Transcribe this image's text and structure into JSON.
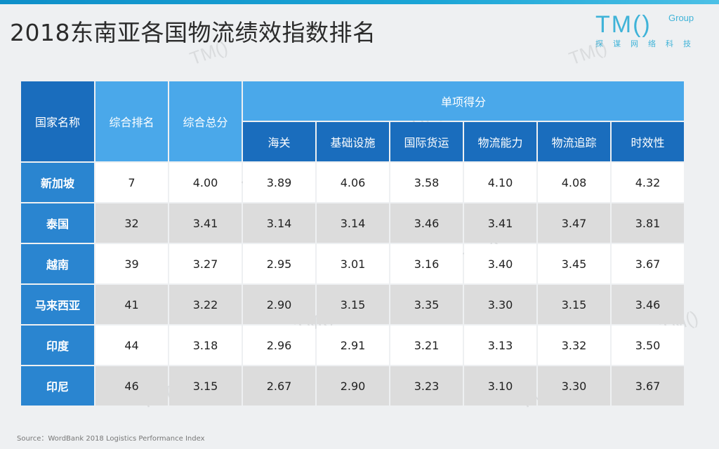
{
  "title": "2018东南亚各国物流绩效指数排名",
  "logo": {
    "main": "TM()",
    "group": "Group",
    "sub": "探谋网络科技"
  },
  "table": {
    "headers": {
      "country": "国家名称",
      "rank": "综合排名",
      "score": "综合总分",
      "group": "单项得分",
      "sub": [
        "海关",
        "基础设施",
        "国际货运",
        "物流能力",
        "物流追踪",
        "时效性"
      ]
    },
    "rows": [
      {
        "country": "新加坡",
        "rank": "7",
        "score": "4.00",
        "values": [
          "3.89",
          "4.06",
          "3.58",
          "4.10",
          "4.08",
          "4.32"
        ]
      },
      {
        "country": "泰国",
        "rank": "32",
        "score": "3.41",
        "values": [
          "3.14",
          "3.14",
          "3.46",
          "3.41",
          "3.47",
          "3.81"
        ]
      },
      {
        "country": "越南",
        "rank": "39",
        "score": "3.27",
        "values": [
          "2.95",
          "3.01",
          "3.16",
          "3.40",
          "3.45",
          "3.67"
        ]
      },
      {
        "country": "马来西亚",
        "rank": "41",
        "score": "3.22",
        "values": [
          "2.90",
          "3.15",
          "3.35",
          "3.30",
          "3.15",
          "3.46"
        ]
      },
      {
        "country": "印度",
        "rank": "44",
        "score": "3.18",
        "values": [
          "2.96",
          "2.91",
          "3.21",
          "3.13",
          "3.32",
          "3.50"
        ]
      },
      {
        "country": "印尼",
        "rank": "46",
        "score": "3.15",
        "values": [
          "2.67",
          "2.90",
          "3.23",
          "3.10",
          "3.30",
          "3.67"
        ]
      }
    ]
  },
  "source": "Source：WordBank 2018 Logistics Performance Index",
  "watermark": "TM()",
  "colors": {
    "header_dark": "#1a6dbd",
    "header_light": "#4aa8ea",
    "first_col": "#2a85d0",
    "row_alt": "#dcdcdc"
  }
}
